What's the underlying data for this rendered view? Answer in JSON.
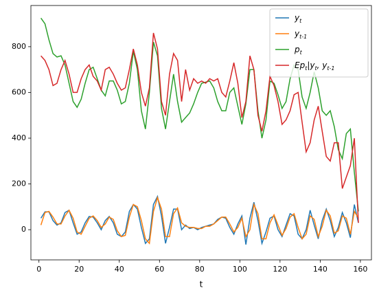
{
  "chart_data": {
    "type": "line",
    "xlabel": "t",
    "xlim": [
      -4,
      165.5
    ],
    "ylim": [
      -132,
      980
    ],
    "xticks": [
      0,
      20,
      40,
      60,
      80,
      100,
      120,
      140,
      160
    ],
    "yticks": [
      0,
      200,
      400,
      600,
      800
    ],
    "legend": "upper right",
    "grid": false,
    "x": [
      1,
      3,
      5,
      7,
      9,
      11,
      13,
      15,
      17,
      19,
      21,
      23,
      25,
      27,
      29,
      31,
      33,
      35,
      37,
      39,
      41,
      43,
      45,
      47,
      49,
      51,
      53,
      55,
      57,
      59,
      61,
      63,
      65,
      67,
      69,
      71,
      73,
      75,
      77,
      79,
      81,
      83,
      85,
      87,
      89,
      91,
      93,
      95,
      97,
      99,
      101,
      103,
      105,
      107,
      109,
      111,
      113,
      115,
      117,
      119,
      121,
      123,
      125,
      127,
      129,
      131,
      133,
      135,
      137,
      139,
      141,
      143,
      145,
      147,
      149,
      151,
      153,
      155,
      157,
      159
    ],
    "series": [
      {
        "name": "y_t",
        "color": "#1f77b4",
        "values": [
          50,
          78,
          78,
          40,
          20,
          30,
          75,
          85,
          30,
          -20,
          -10,
          30,
          58,
          55,
          30,
          0,
          40,
          58,
          30,
          -20,
          -30,
          -10,
          80,
          110,
          90,
          10,
          -60,
          -40,
          110,
          145,
          60,
          -60,
          10,
          90,
          90,
          0,
          20,
          5,
          10,
          0,
          10,
          15,
          20,
          25,
          45,
          55,
          50,
          10,
          -20,
          25,
          60,
          -65,
          50,
          120,
          40,
          -60,
          -10,
          50,
          60,
          0,
          -30,
          20,
          70,
          60,
          -20,
          -40,
          0,
          85,
          20,
          -40,
          40,
          90,
          40,
          -30,
          10,
          75,
          30,
          -35,
          110,
          30
        ]
      },
      {
        "name": "y_{t-1}",
        "color": "#ff7f0e",
        "values": [
          20,
          75,
          80,
          55,
          25,
          25,
          60,
          85,
          50,
          -10,
          -20,
          15,
          50,
          60,
          40,
          10,
          25,
          55,
          45,
          -5,
          -30,
          -25,
          55,
          110,
          100,
          40,
          -40,
          -60,
          80,
          140,
          90,
          -30,
          -30,
          70,
          95,
          30,
          15,
          10,
          10,
          5,
          5,
          15,
          15,
          25,
          40,
          55,
          55,
          25,
          -10,
          10,
          50,
          -30,
          0,
          110,
          70,
          -40,
          -40,
          30,
          65,
          20,
          -25,
          5,
          55,
          70,
          10,
          -40,
          -20,
          60,
          45,
          -30,
          15,
          85,
          60,
          -15,
          -5,
          60,
          50,
          -20,
          80,
          50
        ]
      },
      {
        "name": "p_t",
        "color": "#2ca02c",
        "values": [
          925,
          900,
          830,
          770,
          755,
          760,
          720,
          640,
          560,
          535,
          570,
          640,
          700,
          710,
          660,
          610,
          585,
          650,
          650,
          610,
          550,
          560,
          640,
          780,
          700,
          520,
          440,
          600,
          820,
          760,
          530,
          440,
          560,
          680,
          560,
          470,
          490,
          510,
          550,
          600,
          640,
          645,
          650,
          620,
          560,
          520,
          520,
          600,
          620,
          540,
          460,
          550,
          700,
          700,
          520,
          400,
          480,
          650,
          640,
          590,
          530,
          560,
          660,
          720,
          700,
          580,
          530,
          600,
          690,
          620,
          520,
          500,
          520,
          450,
          350,
          310,
          420,
          440,
          250,
          80
        ]
      },
      {
        "name": "Ep_t|y_t, y_{t-1}",
        "color": "#d62728",
        "values": [
          760,
          740,
          700,
          630,
          640,
          700,
          740,
          680,
          600,
          600,
          660,
          700,
          720,
          670,
          650,
          610,
          700,
          710,
          680,
          640,
          610,
          620,
          700,
          790,
          720,
          600,
          540,
          620,
          860,
          790,
          560,
          500,
          680,
          770,
          740,
          560,
          700,
          610,
          660,
          640,
          650,
          640,
          660,
          650,
          660,
          600,
          580,
          650,
          730,
          640,
          490,
          560,
          760,
          700,
          500,
          430,
          520,
          670,
          630,
          560,
          460,
          480,
          520,
          590,
          600,
          470,
          340,
          380,
          480,
          540,
          430,
          320,
          300,
          380,
          380,
          180,
          230,
          280,
          400,
          30
        ]
      }
    ]
  }
}
